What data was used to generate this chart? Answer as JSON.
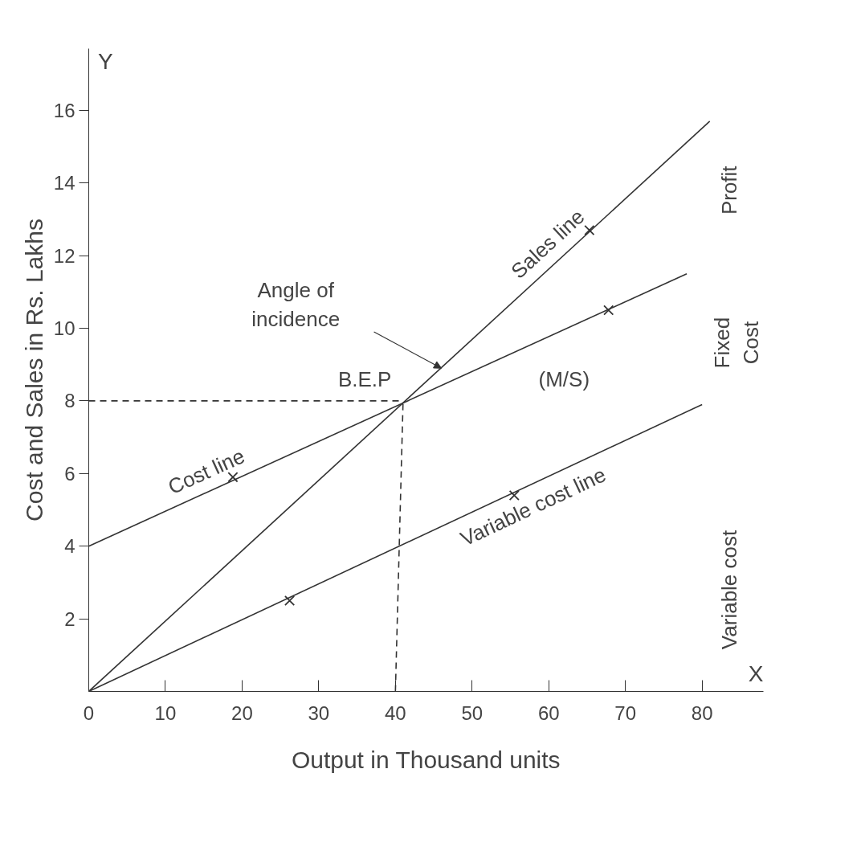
{
  "chart_data": {
    "type": "line",
    "xlabel": "Output in Thousand units",
    "ylabel": "Cost and Sales in Rs. Lakhs",
    "xlim": [
      0,
      88
    ],
    "ylim": [
      0,
      17.7
    ],
    "xticks": [
      0,
      10,
      20,
      30,
      40,
      50,
      60,
      70,
      80
    ],
    "yticks": [
      2,
      4,
      6,
      8,
      10,
      12,
      14,
      16
    ],
    "series": [
      {
        "name": "Sales line",
        "color": "#333333",
        "x": [
          0,
          81
        ],
        "values": [
          0,
          15.7
        ]
      },
      {
        "name": "Cost line",
        "color": "#333333",
        "x": [
          0,
          78
        ],
        "values": [
          4,
          11.5
        ]
      },
      {
        "name": "Variable cost line",
        "color": "#333333",
        "x": [
          0,
          80
        ],
        "values": [
          0,
          7.9
        ]
      },
      {
        "color": "#333333",
        "line_style": "dashed",
        "x": [
          0,
          41
        ],
        "values": [
          8,
          8
        ]
      },
      {
        "color": "#333333",
        "line_style": "dashed",
        "x": [
          40,
          41
        ],
        "values": [
          0,
          8
        ]
      },
      {
        "type": "scatter",
        "color": "#333333",
        "marker": "cross",
        "x": [
          65.3,
          18.8,
          67.8,
          26.2,
          55.5
        ],
        "values": [
          12.7,
          5.9,
          10.5,
          2.5,
          5.4
        ]
      }
    ],
    "annotations": [
      {
        "text": "B.E.P",
        "x": 41,
        "y": 8
      },
      "Angle of\nincidence",
      "(M/S)",
      "Profit",
      "Fixed\nCost",
      "Variable cost",
      "Y",
      "X"
    ]
  }
}
